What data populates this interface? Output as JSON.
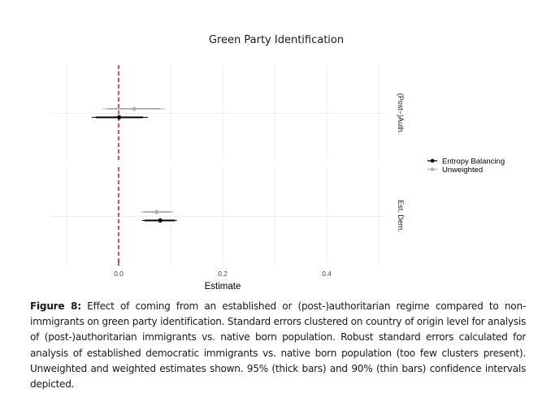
{
  "chart_data": {
    "type": "forest",
    "title": "Green Party Identification",
    "xlabel": "Estimate",
    "ylabel": "",
    "xlim": [
      -0.13,
      0.515
    ],
    "x_ticks": [
      0.0,
      0.2,
      0.4
    ],
    "x_tick_labels": [
      "0.0",
      "0.2",
      "0.4"
    ],
    "x_minor_grid": [
      -0.1,
      0.1,
      0.3,
      0.5
    ],
    "grid": true,
    "reference_line": {
      "x": 0,
      "style": "dashed",
      "color": "#d62728"
    },
    "facets": [
      "(Post−)Auth.",
      "Est. Dem."
    ],
    "legend": {
      "position": "right",
      "entries": [
        {
          "name": "Entropy Balancing",
          "color": "#000000"
        },
        {
          "name": "Unweighted",
          "color": "#b3b3b3"
        }
      ]
    },
    "series": [
      {
        "name": "Unweighted",
        "color": "#b3b3b3",
        "values": [
          {
            "facet": "(Post−)Auth.",
            "estimate": 0.03,
            "ci95": [
              -0.031,
              0.09
            ],
            "ci90": [
              -0.022,
              0.08
            ]
          },
          {
            "facet": "Est. Dem.",
            "estimate": 0.073,
            "ci95": [
              0.042,
              0.106
            ],
            "ci90": [
              0.047,
              0.101
            ]
          }
        ]
      },
      {
        "name": "Entropy Balancing",
        "color": "#000000",
        "values": [
          {
            "facet": "(Post−)Auth.",
            "estimate": 0.001,
            "ci95": [
              -0.052,
              0.056
            ],
            "ci90": [
              -0.044,
              0.047
            ]
          },
          {
            "facet": "Est. Dem.",
            "estimate": 0.08,
            "ci95": [
              0.045,
              0.112
            ],
            "ci90": [
              0.05,
              0.108
            ]
          }
        ]
      }
    ]
  },
  "caption": {
    "label": "Figure 8:",
    "text": "Effect of coming from an established or (post-)authoritarian regime compared to non-immigrants on green party identification. Standard errors clustered on country of origin level for analysis of (post-)authoritarian immigrants vs. native born population. Robust standard errors calculated for analysis of established democratic immigrants vs. native born population (too few clusters present). Unweighted and weighted estimates shown. 95% (thick bars) and 90% (thin bars) confidence intervals depicted."
  }
}
